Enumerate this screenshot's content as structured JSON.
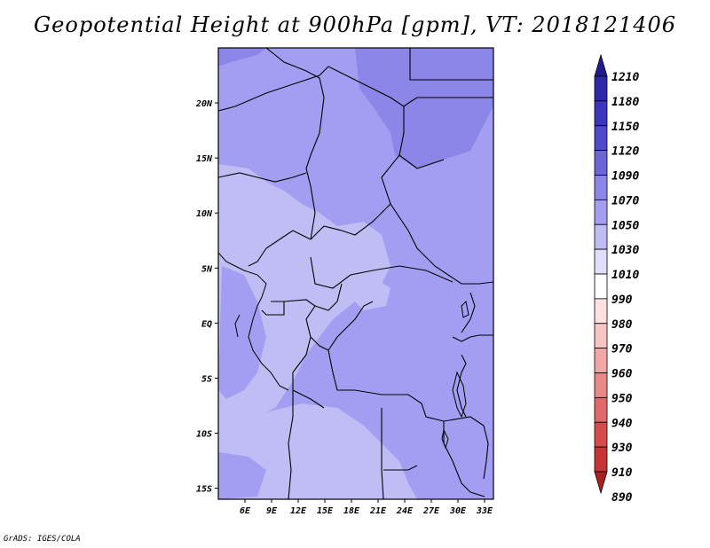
{
  "title": "Geopotential Height at 900hPa [gpm], VT: 2018121406",
  "credit": "GrADS: IGES/COLA",
  "map": {
    "lon_range": [
      3,
      34
    ],
    "lat_range": [
      -16,
      25
    ],
    "lon_ticks": [
      {
        "value": 6,
        "label": "6E"
      },
      {
        "value": 9,
        "label": "9E"
      },
      {
        "value": 12,
        "label": "12E"
      },
      {
        "value": 15,
        "label": "15E"
      },
      {
        "value": 18,
        "label": "18E"
      },
      {
        "value": 21,
        "label": "21E"
      },
      {
        "value": 24,
        "label": "24E"
      },
      {
        "value": 27,
        "label": "27E"
      },
      {
        "value": 30,
        "label": "30E"
      },
      {
        "value": 33,
        "label": "33E"
      }
    ],
    "lat_ticks": [
      {
        "value": 20,
        "label": "20N"
      },
      {
        "value": 15,
        "label": "15N"
      },
      {
        "value": 10,
        "label": "10N"
      },
      {
        "value": 5,
        "label": "5N"
      },
      {
        "value": 0,
        "label": "EQ"
      },
      {
        "value": -5,
        "label": "5S"
      },
      {
        "value": -10,
        "label": "10S"
      },
      {
        "value": -15,
        "label": "15S"
      }
    ]
  },
  "colorbar": {
    "labels": [
      "1210",
      "1180",
      "1150",
      "1120",
      "1090",
      "1070",
      "1050",
      "1030",
      "1010",
      "990",
      "980",
      "970",
      "960",
      "950",
      "940",
      "930",
      "910",
      "890"
    ],
    "colors_top_to_bottom": [
      "#211a8e",
      "#2e27a8",
      "#3c36bc",
      "#5049c8",
      "#6b65d6",
      "#8c86e8",
      "#a49ef2",
      "#c0bdf5",
      "#e0dffb",
      "#ffffff",
      "#fde0e0",
      "#f8c4c4",
      "#f2a6a6",
      "#e88888",
      "#de6a6a",
      "#d34d4d",
      "#c53535",
      "#a92222"
    ]
  }
}
